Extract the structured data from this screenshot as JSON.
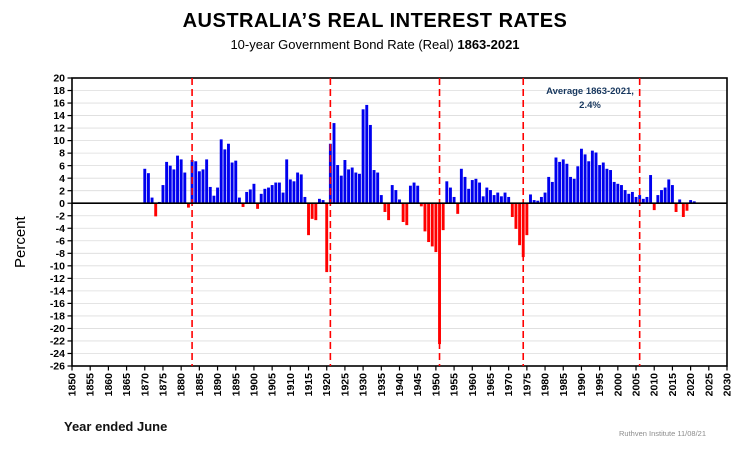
{
  "header": {
    "title": "AUSTRALIA’S REAL INTEREST RATES",
    "subtitle": "10-year Government Bond Rate (Real)",
    "subtitle_range": "1863-2021"
  },
  "annotation": {
    "line1": "Average 1863-2021,",
    "line2": "2.4%"
  },
  "footer": {
    "left": "Year ended June",
    "right": "Ruthven Institute 11/08/21"
  },
  "colors": {
    "positive_bar": "#0000ee",
    "negative_bar": "#ff0000",
    "dashed_line": "#ff0000",
    "gridline": "#dcdcdc",
    "axis": "#000000",
    "annotation_text": "#17375e",
    "footer_text": "#8c8c8c"
  },
  "chart_data": {
    "type": "bar",
    "title": "AUSTRALIA’S REAL INTEREST RATES",
    "subtitle": "10-year Government Bond Rate (Real) 1863-2021",
    "xlabel": "Year ended June",
    "ylabel": "Percent",
    "x_axis": {
      "min": 1850,
      "max": 2030,
      "tick_step": 5
    },
    "y_axis": {
      "min": -26,
      "max": 20,
      "tick_step": 2
    },
    "grid": true,
    "dashed_vlines_years": [
      1883,
      1921,
      1951,
      1974,
      2006
    ],
    "average_value": 2.4,
    "years_start": 1863,
    "years_end": 2021,
    "values": [
      0.0,
      0.0,
      0.0,
      0.0,
      0.0,
      0.0,
      0.0,
      5.5,
      4.8,
      0.9,
      -2.1,
      0.2,
      2.9,
      6.6,
      6.0,
      5.4,
      7.6,
      7.0,
      4.9,
      -0.7,
      6.9,
      6.7,
      5.1,
      5.4,
      7.0,
      2.6,
      1.2,
      2.5,
      10.2,
      8.6,
      9.5,
      6.5,
      6.8,
      0.9,
      -0.6,
      1.8,
      2.2,
      3.1,
      -0.9,
      1.5,
      2.3,
      2.5,
      2.9,
      3.3,
      3.3,
      1.7,
      7.0,
      3.8,
      3.5,
      4.9,
      4.6,
      1.0,
      -5.1,
      -2.5,
      -2.7,
      0.7,
      0.5,
      -11.0,
      9.5,
      12.8,
      6.1,
      4.4,
      6.9,
      5.4,
      5.7,
      4.9,
      4.7,
      15.0,
      15.7,
      12.5,
      5.3,
      4.9,
      1.3,
      -1.4,
      -2.7,
      2.9,
      2.1,
      0.6,
      -3.0,
      -3.5,
      2.8,
      3.3,
      2.8,
      -0.5,
      -4.5,
      -6.2,
      -6.9,
      -7.8,
      -22.5,
      -4.3,
      3.5,
      2.5,
      1.0,
      -1.7,
      5.5,
      4.2,
      2.3,
      3.7,
      3.9,
      3.3,
      1.1,
      2.5,
      2.1,
      1.3,
      1.7,
      1.1,
      1.7,
      1.0,
      -2.2,
      -4.1,
      -6.7,
      -8.6,
      -5.1,
      1.4,
      0.5,
      0.4,
      1.0,
      1.7,
      4.2,
      3.4,
      7.3,
      6.6,
      7.0,
      6.3,
      4.2,
      3.9,
      5.9,
      8.7,
      7.8,
      6.7,
      8.4,
      8.1,
      6.1,
      6.5,
      5.5,
      5.3,
      3.4,
      3.1,
      2.9,
      2.1,
      1.5,
      1.8,
      1.0,
      1.3,
      0.7,
      1.0,
      4.5,
      -1.1,
      1.3,
      2.1,
      2.5,
      3.8,
      2.9,
      -1.4,
      0.6,
      -2.2,
      -1.2,
      0.5,
      0.3
    ]
  }
}
